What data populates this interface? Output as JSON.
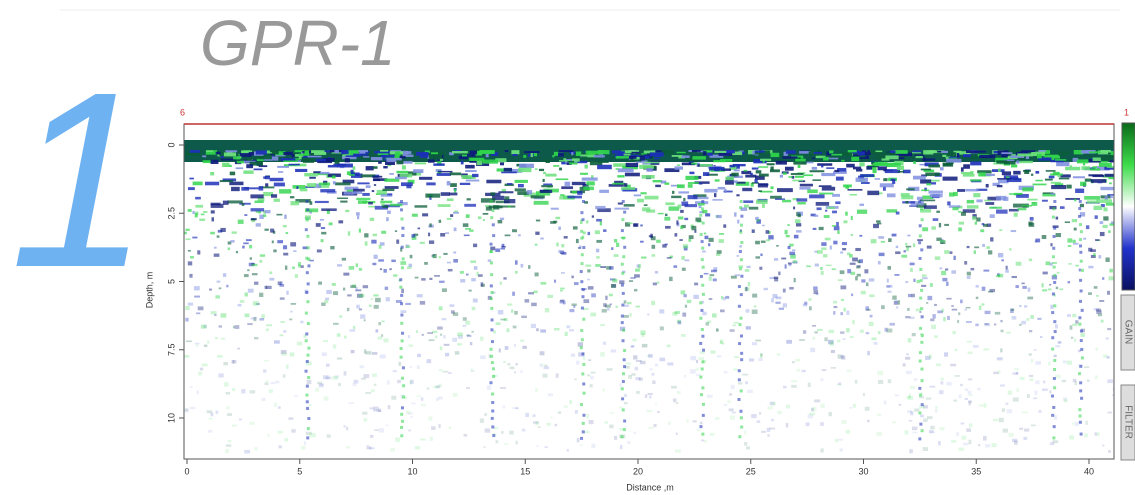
{
  "header": {
    "number": "1",
    "title": "GPR-1"
  },
  "radargram": {
    "corner_left": "6",
    "corner_right": "1",
    "x_label": "Distance ,m",
    "y_label": "Depth, m",
    "xticks": [
      0,
      5,
      10,
      15,
      20,
      25,
      30,
      35,
      40
    ],
    "yticks": [
      0,
      2.5,
      5,
      7.5,
      10
    ],
    "side_tabs": [
      "GAIN",
      "FILTER"
    ]
  }
}
